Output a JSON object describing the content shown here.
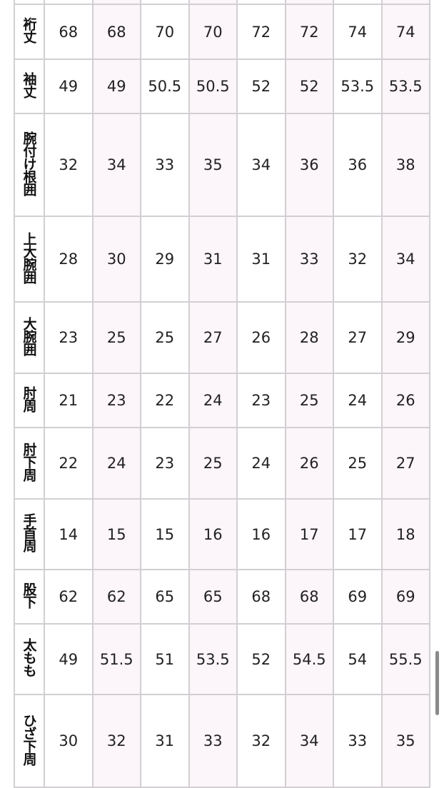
{
  "table": {
    "rows": [
      {
        "label": "",
        "values": [
          "",
          "",
          "",
          "",
          "",
          "",
          "",
          ""
        ]
      },
      {
        "label": "裄丈",
        "values": [
          "68",
          "68",
          "70",
          "70",
          "72",
          "72",
          "74",
          "74"
        ]
      },
      {
        "label": "袖丈",
        "values": [
          "49",
          "49",
          "50.5",
          "50.5",
          "52",
          "52",
          "53.5",
          "53.5"
        ]
      },
      {
        "label": "腕付け根囲",
        "values": [
          "32",
          "34",
          "33",
          "35",
          "34",
          "36",
          "36",
          "38"
        ]
      },
      {
        "label": "上大腕囲",
        "values": [
          "28",
          "30",
          "29",
          "31",
          "31",
          "33",
          "32",
          "34"
        ]
      },
      {
        "label": "大腕囲",
        "values": [
          "23",
          "25",
          "25",
          "27",
          "26",
          "28",
          "27",
          "29"
        ]
      },
      {
        "label": "肘周",
        "values": [
          "21",
          "23",
          "22",
          "24",
          "23",
          "25",
          "24",
          "26"
        ]
      },
      {
        "label": "肘下周",
        "values": [
          "22",
          "24",
          "23",
          "25",
          "24",
          "26",
          "25",
          "27"
        ]
      },
      {
        "label": "手首周",
        "values": [
          "14",
          "15",
          "15",
          "16",
          "16",
          "17",
          "17",
          "18"
        ]
      },
      {
        "label": "股下",
        "values": [
          "62",
          "62",
          "65",
          "65",
          "68",
          "68",
          "69",
          "69"
        ]
      },
      {
        "label": "太もも",
        "values": [
          "49",
          "51.5",
          "51",
          "53.5",
          "52",
          "54.5",
          "54",
          "55.5"
        ]
      },
      {
        "label": "ひざ下周",
        "values": [
          "30",
          "32",
          "31",
          "33",
          "32",
          "34",
          "33",
          "35"
        ]
      }
    ]
  },
  "colors": {
    "border": "#d2cfd2",
    "alt_column": "#fcf5fa"
  }
}
